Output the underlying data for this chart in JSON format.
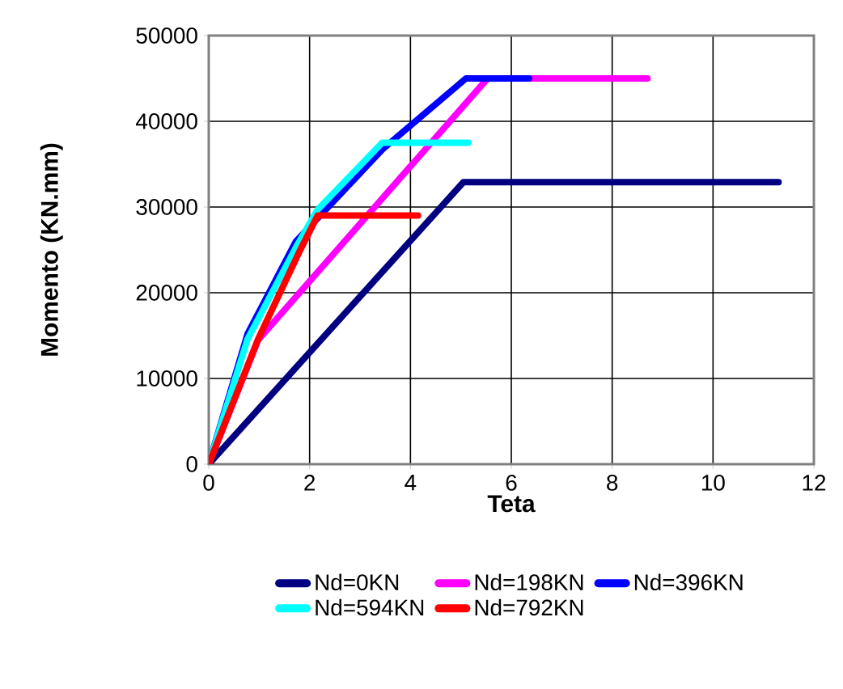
{
  "chart_data": {
    "type": "line",
    "xlabel": "Teta",
    "ylabel": "Momento (KN.mm)",
    "xlim": [
      0,
      12
    ],
    "ylim": [
      0,
      50000
    ],
    "xticks": [
      0,
      2,
      4,
      6,
      8,
      10,
      12
    ],
    "yticks": [
      0,
      10000,
      20000,
      30000,
      40000,
      50000
    ],
    "grid": true,
    "legend": "bottom",
    "marker": "none",
    "line_style": "solid",
    "series": [
      {
        "name": "Nd=0KN",
        "color": "#000080",
        "x": [
          0,
          5.05,
          11.3
        ],
        "values": [
          0,
          32900,
          32900
        ]
      },
      {
        "name": "Nd=198KN",
        "color": "#ff00ff",
        "x": [
          0,
          0.98,
          5.53,
          8.7
        ],
        "values": [
          0,
          14500,
          45000,
          45000
        ]
      },
      {
        "name": "Nd=396KN",
        "color": "#0000ff",
        "x": [
          0,
          0.77,
          1.73,
          3.44,
          5.1,
          6.35
        ],
        "values": [
          0,
          15200,
          26000,
          36700,
          45000,
          45000
        ]
      },
      {
        "name": "Nd=594KN",
        "color": "#00ffff",
        "x": [
          0,
          0.77,
          1.73,
          2.16,
          3.44,
          5.15
        ],
        "values": [
          0,
          14600,
          25300,
          29700,
          37500,
          37500
        ]
      },
      {
        "name": "Nd=792KN",
        "color": "#ff0000",
        "x": [
          0,
          0.98,
          1.79,
          2.16,
          4.15
        ],
        "values": [
          0,
          14600,
          24700,
          29000,
          29000
        ]
      }
    ]
  }
}
